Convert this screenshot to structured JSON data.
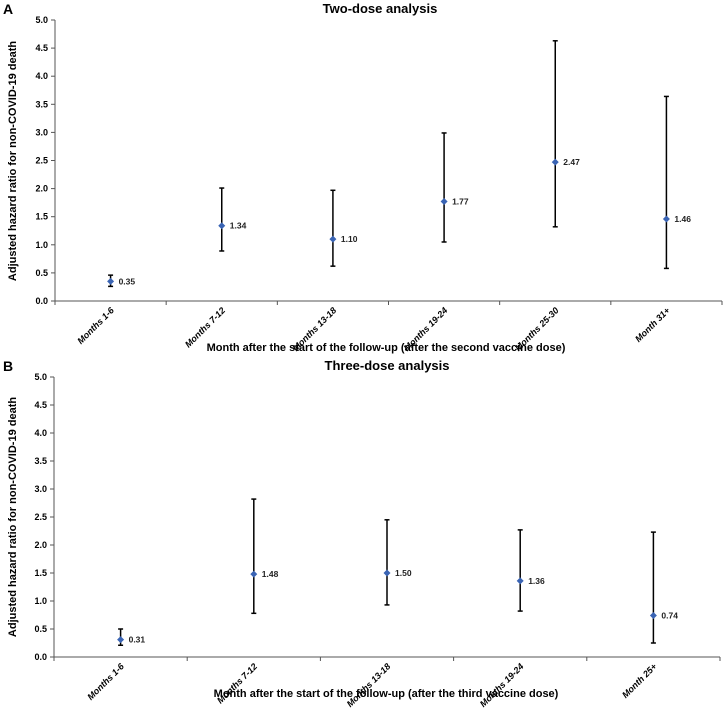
{
  "chart_data": [
    {
      "panel": "A",
      "type": "scatter",
      "title": "Two-dose analysis",
      "xlabel": "Month after the start of the follow-up (after the second vaccine dose)",
      "ylabel": "Adjusted hazard ratio for non-COVID-19 death",
      "ylim": [
        0,
        5
      ],
      "yticks": [
        "0.0",
        "0.5",
        "1.0",
        "1.5",
        "2.0",
        "2.5",
        "3.0",
        "3.5",
        "4.0",
        "4.5",
        "5.0"
      ],
      "grid": false,
      "categories": [
        "Months 1-6",
        "Months 7-12",
        "Months 13-18",
        "Months 19-24",
        "Months 25-30",
        "Month 31+"
      ],
      "values": [
        0.35,
        1.34,
        1.1,
        1.77,
        2.47,
        1.46
      ],
      "labels": [
        "0.35",
        "1.34",
        "1.10",
        "1.77",
        "2.47",
        "1.46"
      ],
      "lower": [
        0.26,
        0.89,
        0.62,
        1.05,
        1.32,
        0.58
      ],
      "upper": [
        0.46,
        2.01,
        1.97,
        2.99,
        4.63,
        3.64
      ],
      "marker_color": "#3a64b4"
    },
    {
      "panel": "B",
      "type": "scatter",
      "title": "Three-dose analysis",
      "xlabel": "Month after the start of the follow-up (after the third vaccine dose)",
      "ylabel": "Adjusted hazard ratio for non-COVID-19 death",
      "ylim": [
        0,
        5
      ],
      "yticks": [
        "0.0",
        "0.5",
        "1.0",
        "1.5",
        "2.0",
        "2.5",
        "3.0",
        "3.5",
        "4.0",
        "4.5",
        "5.0"
      ],
      "grid": false,
      "categories": [
        "Months 1-6",
        "Months 7-12",
        "Months 13-18",
        "Months 19-24",
        "Month 25+"
      ],
      "values": [
        0.31,
        1.48,
        1.5,
        1.36,
        0.74
      ],
      "labels": [
        "0.31",
        "1.48",
        "1.50",
        "1.36",
        "0.74"
      ],
      "lower": [
        0.21,
        0.78,
        0.93,
        0.82,
        0.25
      ],
      "upper": [
        0.5,
        2.82,
        2.45,
        2.27,
        2.23
      ],
      "marker_color": "#3a64b4"
    }
  ]
}
